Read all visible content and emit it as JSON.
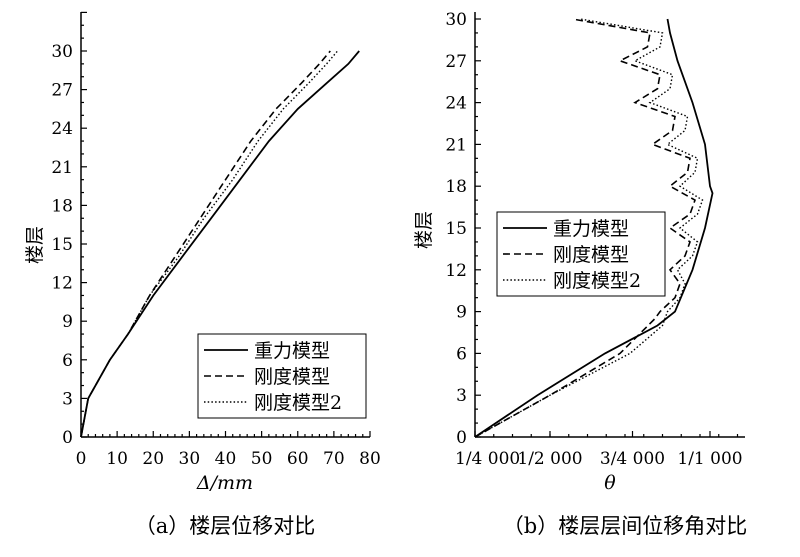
{
  "chart_data": [
    {
      "type": "line",
      "caption": "（a）楼层位移对比",
      "xlabel": "Δ/mm",
      "ylabel": "楼层",
      "xlim": [
        0,
        80
      ],
      "ylim": [
        0,
        33
      ],
      "x_ticks": [
        "0",
        "10",
        "20",
        "30",
        "40",
        "50",
        "60",
        "70",
        "80"
      ],
      "y_ticks": [
        "0",
        "3",
        "6",
        "9",
        "12",
        "15",
        "18",
        "21",
        "24",
        "27",
        "30"
      ],
      "legend_position": "bottom-right",
      "series": [
        {
          "name": "重力模型",
          "style": "solid",
          "points": [
            [
              0,
              0
            ],
            [
              1,
              1.5
            ],
            [
              2,
              3
            ],
            [
              5,
              4.5
            ],
            [
              8,
              6
            ],
            [
              13,
              8
            ],
            [
              20,
              11
            ],
            [
              28,
              14
            ],
            [
              36,
              17
            ],
            [
              44,
              20
            ],
            [
              52,
              23
            ],
            [
              60,
              25.5
            ],
            [
              68,
              27.5
            ],
            [
              74,
              29
            ],
            [
              77,
              30
            ]
          ]
        },
        {
          "name": "刚度模型",
          "style": "dashed",
          "points": [
            [
              0,
              0
            ],
            [
              1,
              1.5
            ],
            [
              2,
              3
            ],
            [
              5,
              4.5
            ],
            [
              8,
              6
            ],
            [
              13,
              8
            ],
            [
              19,
              11
            ],
            [
              26,
              14
            ],
            [
              33,
              17
            ],
            [
              40,
              20
            ],
            [
              47,
              23
            ],
            [
              54,
              25.5
            ],
            [
              61,
              27.5
            ],
            [
              66,
              29
            ],
            [
              69,
              30
            ]
          ]
        },
        {
          "name": "刚度模型2",
          "style": "dotted",
          "points": [
            [
              0,
              0
            ],
            [
              1,
              1.5
            ],
            [
              2,
              3
            ],
            [
              5,
              4.5
            ],
            [
              8,
              6
            ],
            [
              13,
              8
            ],
            [
              19,
              11
            ],
            [
              27,
              14
            ],
            [
              34,
              17
            ],
            [
              42,
              20
            ],
            [
              49,
              23
            ],
            [
              56,
              25.5
            ],
            [
              63,
              27.5
            ],
            [
              68,
              29
            ],
            [
              71,
              30
            ]
          ]
        }
      ]
    },
    {
      "type": "line",
      "caption": "（b）楼层层间位移角对比",
      "xlabel": "θ",
      "ylabel": "楼层",
      "xlim": [
        0,
        1.08
      ],
      "ylim": [
        0,
        30
      ],
      "x_ticks": [
        {
          "value": 0,
          "label": "1/4 000"
        },
        {
          "value": 0.3,
          "label": "1/2 000"
        },
        {
          "value": 0.63,
          "label": "3/4 000"
        },
        {
          "value": 0.94,
          "label": "1/1 000"
        }
      ],
      "y_ticks": [
        "0",
        "3",
        "6",
        "9",
        "12",
        "15",
        "18",
        "21",
        "24",
        "27",
        "30"
      ],
      "legend_position": "center-left",
      "series": [
        {
          "name": "重力模型",
          "style": "solid",
          "points": [
            [
              0,
              0
            ],
            [
              0.25,
              3
            ],
            [
              0.52,
              6
            ],
            [
              0.73,
              8
            ],
            [
              0.8,
              9
            ],
            [
              0.87,
              12
            ],
            [
              0.92,
              15
            ],
            [
              0.95,
              17.5
            ],
            [
              0.94,
              18
            ],
            [
              0.92,
              21
            ],
            [
              0.87,
              24
            ],
            [
              0.81,
              27
            ],
            [
              0.78,
              29
            ],
            [
              0.77,
              30
            ]
          ]
        },
        {
          "name": "刚度模型",
          "style": "dashed",
          "points": [
            [
              0,
              0
            ],
            [
              0.3,
              3
            ],
            [
              0.58,
              6
            ],
            [
              0.72,
              8.5
            ],
            [
              0.74,
              9
            ],
            [
              0.8,
              10
            ],
            [
              0.82,
              11
            ],
            [
              0.78,
              12
            ],
            [
              0.84,
              13
            ],
            [
              0.86,
              14
            ],
            [
              0.78,
              15
            ],
            [
              0.86,
              16
            ],
            [
              0.88,
              17
            ],
            [
              0.78,
              18
            ],
            [
              0.85,
              19
            ],
            [
              0.86,
              20
            ],
            [
              0.71,
              21
            ],
            [
              0.79,
              22
            ],
            [
              0.8,
              23
            ],
            [
              0.64,
              24
            ],
            [
              0.73,
              25
            ],
            [
              0.74,
              26
            ],
            [
              0.58,
              27
            ],
            [
              0.69,
              28
            ],
            [
              0.7,
              29
            ],
            [
              0.39,
              30
            ]
          ]
        },
        {
          "name": "刚度模型2",
          "style": "dotted",
          "points": [
            [
              0,
              0
            ],
            [
              0.3,
              3
            ],
            [
              0.62,
              6
            ],
            [
              0.75,
              8
            ],
            [
              0.77,
              9
            ],
            [
              0.82,
              10
            ],
            [
              0.84,
              11
            ],
            [
              0.81,
              12
            ],
            [
              0.87,
              13
            ],
            [
              0.89,
              14
            ],
            [
              0.82,
              15
            ],
            [
              0.89,
              16
            ],
            [
              0.91,
              17
            ],
            [
              0.82,
              18
            ],
            [
              0.88,
              19
            ],
            [
              0.89,
              20
            ],
            [
              0.77,
              21
            ],
            [
              0.84,
              22
            ],
            [
              0.85,
              23
            ],
            [
              0.7,
              24
            ],
            [
              0.78,
              25
            ],
            [
              0.79,
              26
            ],
            [
              0.64,
              27
            ],
            [
              0.74,
              28
            ],
            [
              0.75,
              29
            ],
            [
              0.42,
              30
            ]
          ]
        }
      ]
    }
  ]
}
